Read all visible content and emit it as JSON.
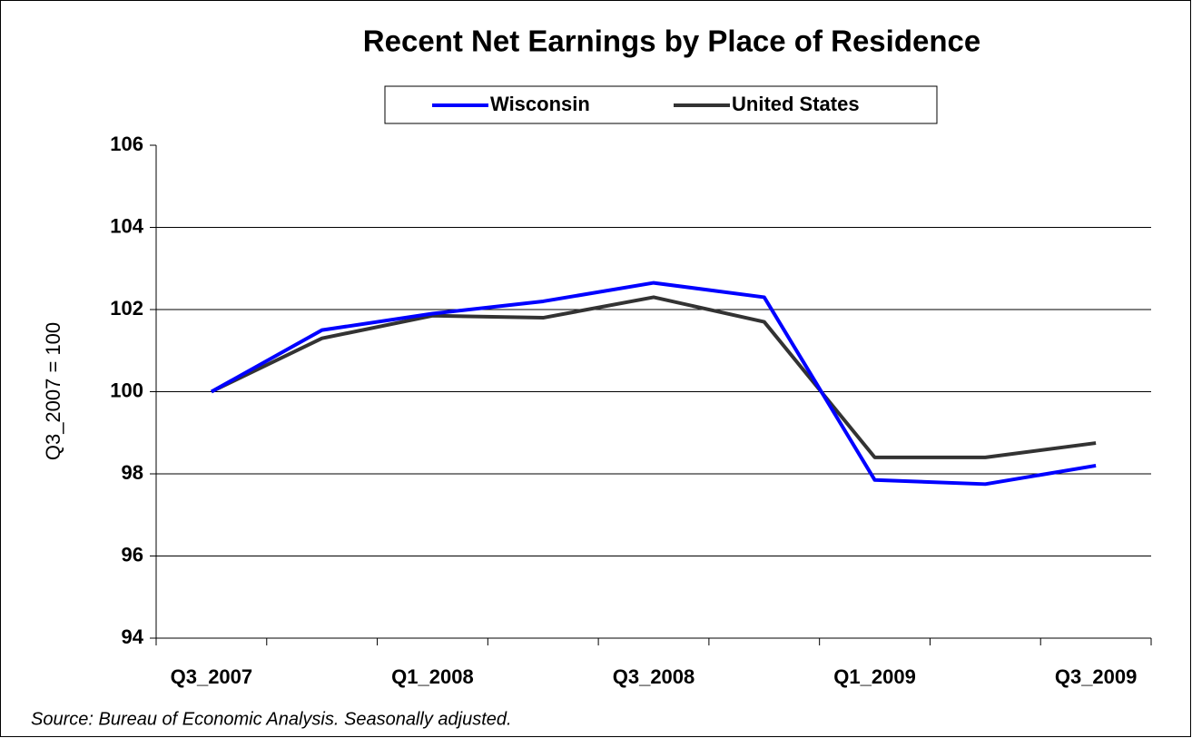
{
  "chart_data": {
    "type": "line",
    "title": "Recent Net Earnings by Place of Residence",
    "y_label": "Q3_2007 = 100",
    "note": "Source: Bureau of Economic Analysis. Seasonally adjusted.",
    "categories": [
      "Q3_2007",
      null,
      "Q1_2008",
      null,
      "Q3_2008",
      null,
      "Q1_2009",
      null,
      "Q3_2009"
    ],
    "series": [
      {
        "name": "Wisconsin",
        "color": "#0000ff",
        "values": [
          100,
          101.5,
          101.9,
          102.2,
          102.65,
          102.3,
          97.85,
          97.75,
          98.2
        ]
      },
      {
        "name": "United States",
        "color": "#333333",
        "values": [
          100,
          101.3,
          101.85,
          101.8,
          102.3,
          101.7,
          98.4,
          98.4,
          98.75
        ]
      }
    ],
    "ylim": [
      94,
      106
    ],
    "yticks": [
      94,
      96,
      98,
      100,
      102,
      104,
      106
    ],
    "grid": true,
    "legend": "top"
  }
}
